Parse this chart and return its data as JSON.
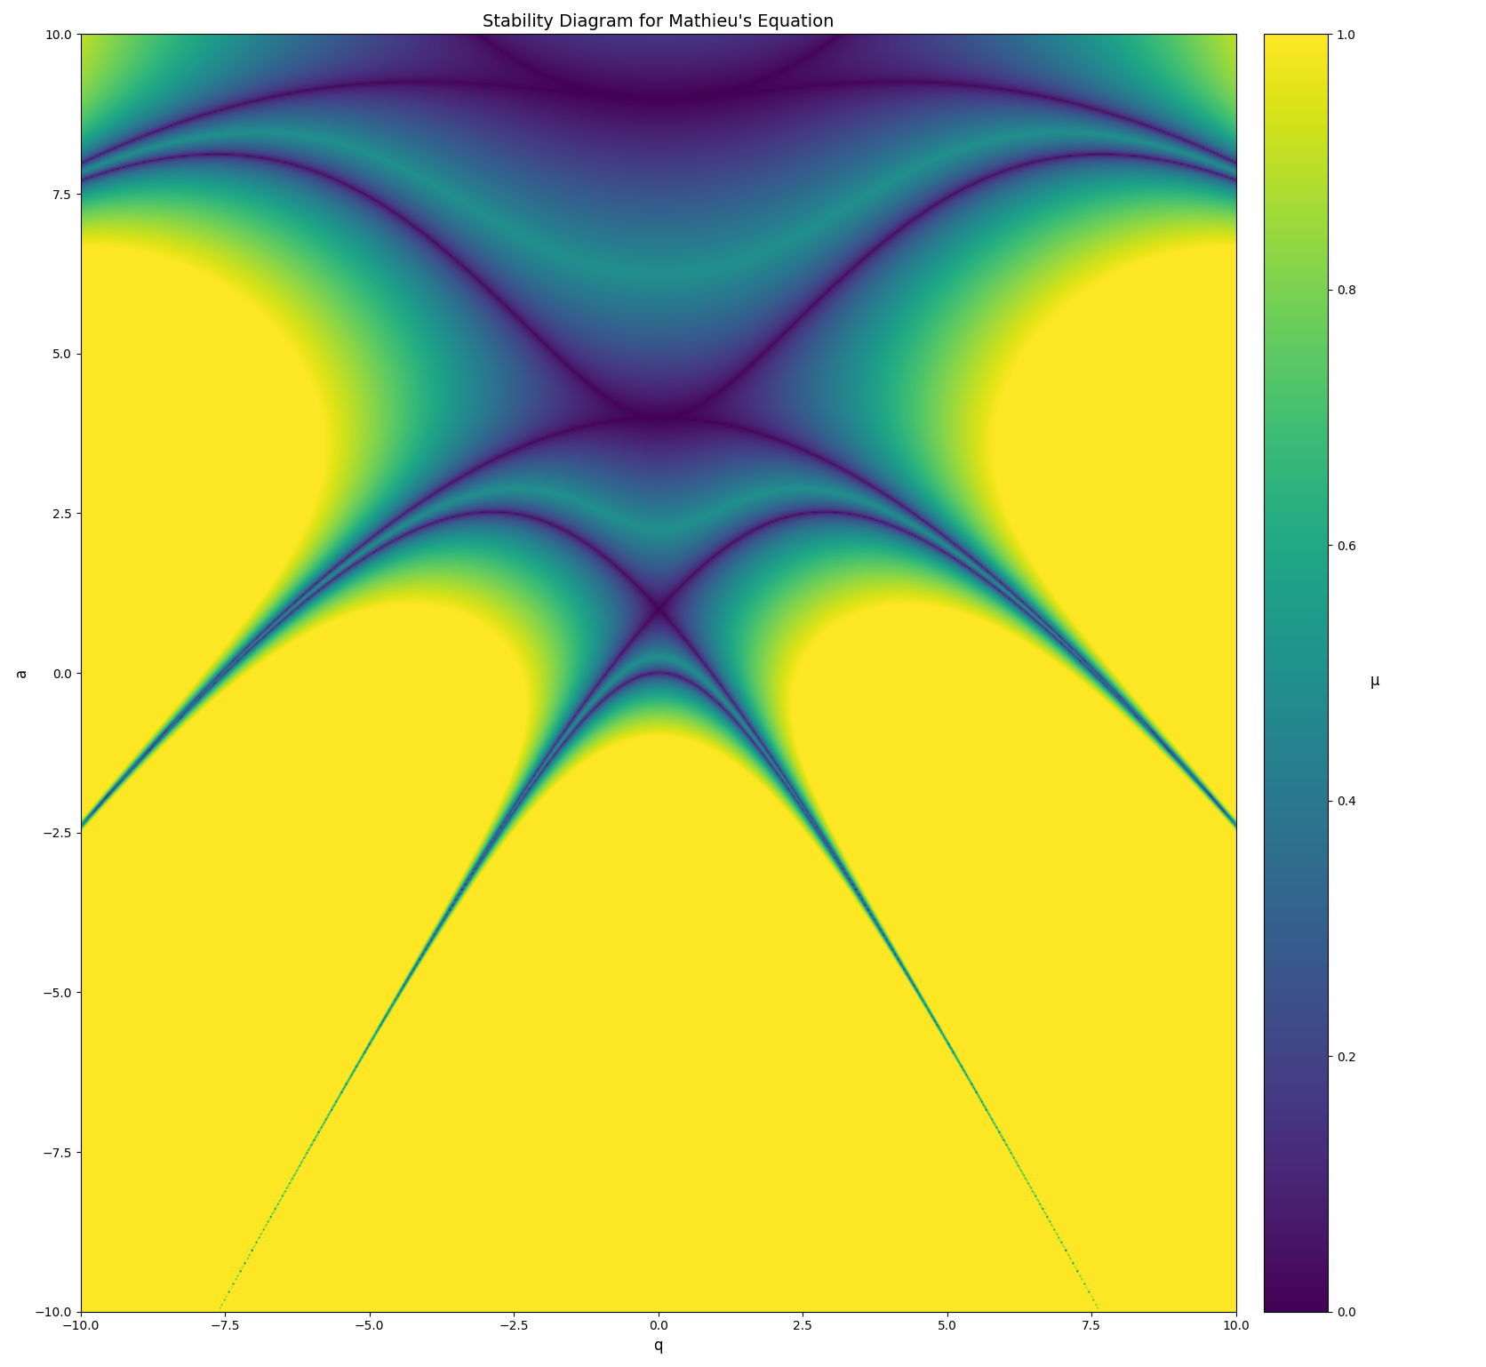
{
  "title": "Stability Diagram for Mathieu's Equation",
  "xlabel": "q",
  "ylabel": "a",
  "colorbar_label": "μ",
  "q_range": [
    -10.0,
    10.0
  ],
  "a_range": [
    -10.0,
    10.0
  ],
  "resolution": 800,
  "cmap": "viridis",
  "vmin": 0.0,
  "vmax": 1.0,
  "figsize": [
    16.72,
    15.38
  ],
  "dpi": 100,
  "steps_per_period": 500,
  "title_fontsize": 14,
  "label_fontsize": 12,
  "colorbar_label_fontsize": 12,
  "colorbar_ticks": [
    0.0,
    0.2,
    0.4,
    0.6,
    0.8,
    1.0
  ],
  "axis_ticks": [
    -10.0,
    -7.5,
    -5.0,
    -2.5,
    0.0,
    2.5,
    5.0,
    7.5,
    10.0
  ]
}
